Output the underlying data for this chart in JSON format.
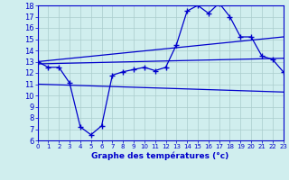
{
  "title": "Graphe des températures (°c)",
  "bg_color": "#d0eeee",
  "line_color": "#0000cc",
  "grid_color": "#aacccc",
  "xlim": [
    0,
    23
  ],
  "ylim": [
    6,
    18
  ],
  "xticks": [
    0,
    1,
    2,
    3,
    4,
    5,
    6,
    7,
    8,
    9,
    10,
    11,
    12,
    13,
    14,
    15,
    16,
    17,
    18,
    19,
    20,
    21,
    22,
    23
  ],
  "yticks": [
    6,
    7,
    8,
    9,
    10,
    11,
    12,
    13,
    14,
    15,
    16,
    17,
    18
  ],
  "line1_x": [
    0,
    1,
    2,
    3,
    4,
    5,
    6,
    7,
    8,
    9,
    10,
    11,
    12,
    13,
    14,
    15,
    16,
    17,
    18,
    19,
    20,
    21,
    22,
    23
  ],
  "line1_y": [
    13.0,
    12.5,
    12.5,
    11.1,
    7.2,
    6.5,
    7.3,
    11.8,
    12.1,
    12.3,
    12.5,
    12.2,
    12.5,
    14.5,
    17.5,
    18.0,
    17.3,
    18.2,
    17.0,
    15.2,
    15.2,
    13.5,
    13.2,
    12.1
  ],
  "line2_x": [
    0,
    23
  ],
  "line2_y": [
    13.0,
    15.2
  ],
  "line3_x": [
    0,
    23
  ],
  "line3_y": [
    12.8,
    13.3
  ],
  "line4_x": [
    0,
    23
  ],
  "line4_y": [
    11.0,
    10.3
  ]
}
